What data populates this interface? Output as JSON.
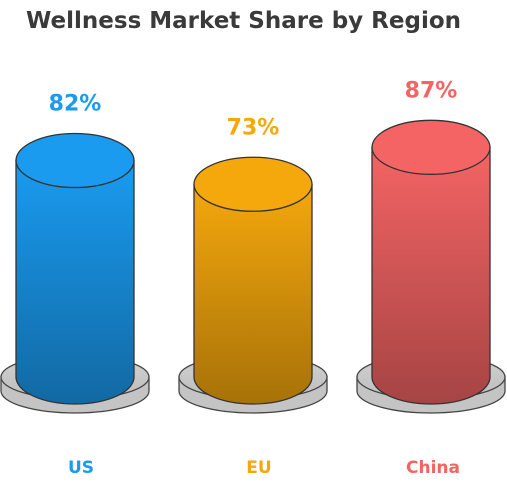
{
  "chart_data": {
    "type": "bar",
    "title": "Wellness Market Share by Region",
    "categories": [
      "US",
      "EU",
      "China"
    ],
    "values": [
      82,
      73,
      87
    ],
    "value_suffix": "%",
    "series_colors": [
      "#1a9bf0",
      "#f5a80c",
      "#f46464"
    ],
    "style": "3d-cylinder"
  }
}
